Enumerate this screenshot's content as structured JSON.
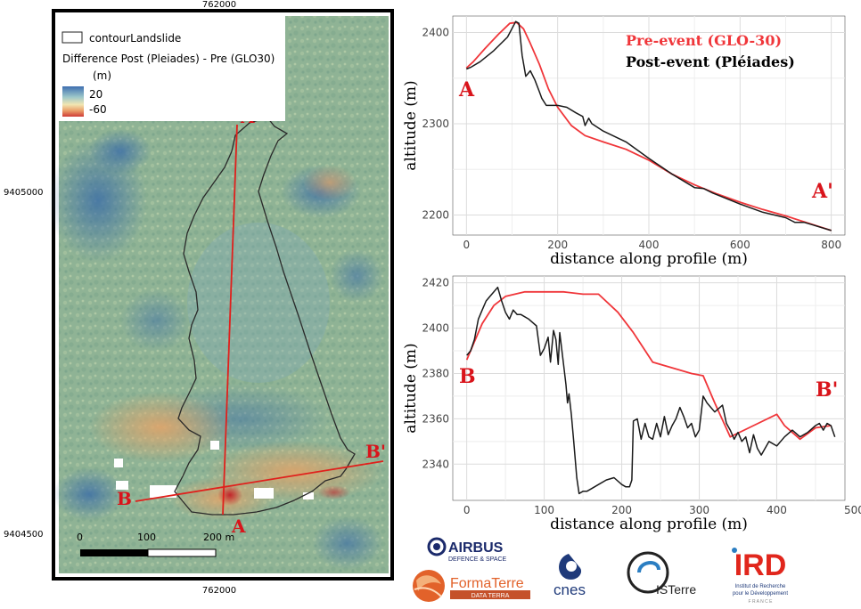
{
  "map": {
    "coord_top": "762000",
    "coord_bottom": "762000",
    "coord_left_upper": "9405000",
    "coord_left_lower": "9404500",
    "legend_outline_label": "contourLandslide",
    "legend_title": "Difference Post (Pleiades) - Pre (GLO30)",
    "legend_unit": "(m)",
    "legend_max": "20",
    "legend_min": "-60",
    "label_A": "A",
    "label_A_prime": "A'",
    "label_B": "B",
    "label_B_prime": "B'",
    "scale_ticks": [
      "0",
      "100",
      "200 m"
    ],
    "colors": {
      "profile_line": "#e0201c",
      "outline": "#2a2a2a",
      "label": "#d9141b"
    }
  },
  "chart_data": [
    {
      "type": "line",
      "xlabel": "distance along profile (m)",
      "ylabel": "altitude (m)",
      "xlim": [
        -30,
        830
      ],
      "ylim": [
        2178,
        2418
      ],
      "xticks": [
        0,
        200,
        400,
        600,
        800
      ],
      "yticks": [
        2200,
        2300,
        2400
      ],
      "grid": true,
      "legend_position": "top-right",
      "start_label": "A",
      "end_label": "A'",
      "series": [
        {
          "name": "Pre-event (GLO-30)",
          "color": "#f0363a",
          "x": [
            0,
            15,
            40,
            70,
            95,
            110,
            125,
            140,
            160,
            180,
            200,
            230,
            260,
            300,
            350,
            400,
            450,
            500,
            550,
            600,
            650,
            700,
            750,
            800
          ],
          "y": [
            2361,
            2368,
            2382,
            2398,
            2410,
            2411,
            2404,
            2388,
            2365,
            2338,
            2318,
            2298,
            2287,
            2280,
            2272,
            2260,
            2245,
            2233,
            2223,
            2214,
            2206,
            2199,
            2191,
            2183
          ]
        },
        {
          "name": "Post-event (Pléiades)",
          "color": "#1a1a1a",
          "x": [
            0,
            10,
            30,
            60,
            90,
            108,
            115,
            122,
            130,
            140,
            150,
            160,
            165,
            175,
            185,
            200,
            220,
            240,
            255,
            260,
            268,
            275,
            300,
            350,
            400,
            450,
            500,
            520,
            540,
            560,
            600,
            650,
            700,
            720,
            740,
            760,
            780,
            800
          ],
          "y": [
            2360,
            2362,
            2368,
            2380,
            2395,
            2412,
            2410,
            2375,
            2352,
            2358,
            2348,
            2335,
            2328,
            2320,
            2320,
            2320,
            2318,
            2312,
            2308,
            2298,
            2306,
            2300,
            2292,
            2280,
            2262,
            2245,
            2230,
            2229,
            2224,
            2220,
            2212,
            2203,
            2197,
            2192,
            2192,
            2189,
            2186,
            2183
          ]
        }
      ]
    },
    {
      "type": "line",
      "xlabel": "distance along profile (m)",
      "ylabel": "altitude (m)",
      "xlim": [
        -18,
        488
      ],
      "ylim": [
        2324,
        2423
      ],
      "xticks": [
        0,
        100,
        200,
        300,
        400,
        500
      ],
      "xtick_labels": [
        "0",
        "100",
        "200",
        "300",
        "400",
        "500"
      ],
      "yticks": [
        2340,
        2360,
        2380,
        2400,
        2420
      ],
      "grid": true,
      "start_label": "B",
      "end_label": "B'",
      "series": [
        {
          "name": "Pre-event (GLO-30)",
          "color": "#f0363a",
          "x": [
            0,
            10,
            20,
            35,
            50,
            75,
            100,
            125,
            150,
            170,
            195,
            215,
            240,
            270,
            290,
            305,
            320,
            340,
            370,
            400,
            410,
            430,
            450,
            470
          ],
          "y": [
            2386,
            2394,
            2402,
            2410,
            2414,
            2416,
            2416,
            2416,
            2415,
            2415,
            2407,
            2398,
            2385,
            2382,
            2380,
            2379,
            2367,
            2352,
            2357,
            2362,
            2357,
            2351,
            2356,
            2357
          ]
        },
        {
          "name": "Post-event (Pléiades)",
          "color": "#1a1a1a",
          "x": [
            0,
            5,
            10,
            15,
            20,
            25,
            30,
            35,
            40,
            45,
            50,
            55,
            60,
            65,
            70,
            80,
            90,
            95,
            100,
            105,
            108,
            112,
            115,
            118,
            120,
            125,
            128,
            130,
            132,
            135,
            138,
            142,
            145,
            150,
            155,
            160,
            170,
            180,
            190,
            200,
            205,
            210,
            213,
            215,
            220,
            225,
            230,
            235,
            240,
            245,
            250,
            255,
            260,
            265,
            270,
            275,
            280,
            285,
            290,
            295,
            300,
            305,
            310,
            320,
            330,
            335,
            340,
            345,
            350,
            355,
            360,
            365,
            370,
            375,
            380,
            390,
            400,
            410,
            420,
            430,
            440,
            450,
            455,
            460,
            465,
            470,
            475
          ],
          "y": [
            2388,
            2390,
            2395,
            2404,
            2408,
            2412,
            2414,
            2416,
            2418,
            2412,
            2407,
            2404,
            2408,
            2406,
            2406,
            2404,
            2401,
            2388,
            2391,
            2396,
            2385,
            2399,
            2395,
            2384,
            2398,
            2384,
            2375,
            2367,
            2371,
            2362,
            2350,
            2334,
            2327,
            2328,
            2328,
            2329,
            2331,
            2333,
            2334,
            2331,
            2330,
            2330,
            2333,
            2359,
            2360,
            2351,
            2358,
            2352,
            2351,
            2358,
            2352,
            2361,
            2353,
            2357,
            2360,
            2365,
            2361,
            2356,
            2358,
            2352,
            2355,
            2370,
            2367,
            2363,
            2366,
            2358,
            2355,
            2351,
            2354,
            2350,
            2352,
            2345,
            2353,
            2347,
            2344,
            2350,
            2348,
            2352,
            2355,
            2352,
            2354,
            2357,
            2358,
            2355,
            2358,
            2357,
            2352
          ]
        }
      ]
    }
  ],
  "logos": {
    "airbus": "AIRBUS",
    "airbus_sub": "DEFENCE & SPACE",
    "formaterre": "FormaTerre",
    "formaterre_sub": "DATA TERRA",
    "cnes": "cnes",
    "isterre": "ISTerre",
    "ird": "IRD",
    "ird_sub1": "Institut de Recherche",
    "ird_sub2": "pour le Développement",
    "ird_sub3": "F R A N C E",
    "colors": {
      "airbus": "#1b2a6b",
      "formaterre": "#e2622a",
      "cnes": "#1f3a7a",
      "isterre": "#222222",
      "ird": "#e1261c"
    }
  }
}
